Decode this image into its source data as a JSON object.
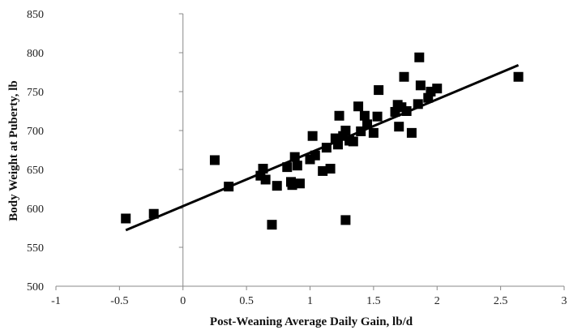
{
  "chart_data": {
    "type": "scatter",
    "title": "",
    "xlabel": "Post-Weaning Average Daily Gain, lb/d",
    "ylabel": "Body Weight at Puberty, lb",
    "xlim": [
      -1,
      3
    ],
    "ylim": [
      500,
      850
    ],
    "xticks": [
      -1,
      -0.5,
      0,
      0.5,
      1,
      1.5,
      2,
      2.5,
      3
    ],
    "xtick_labels": [
      "-1",
      "-0.5",
      "0",
      "0.5",
      "1",
      "1.5",
      "2",
      "2.5",
      "3"
    ],
    "yticks": [
      500,
      550,
      600,
      650,
      700,
      750,
      800,
      850
    ],
    "ytick_labels": [
      "500",
      "550",
      "600",
      "650",
      "700",
      "750",
      "800",
      "850"
    ],
    "grid": false,
    "legend": "none",
    "marker_color": "#000000",
    "points": [
      [
        -0.45,
        587
      ],
      [
        -0.23,
        593
      ],
      [
        0.25,
        662
      ],
      [
        0.36,
        628
      ],
      [
        0.61,
        642
      ],
      [
        0.63,
        651
      ],
      [
        0.65,
        637
      ],
      [
        0.7,
        579
      ],
      [
        0.74,
        629
      ],
      [
        0.82,
        653
      ],
      [
        0.85,
        634
      ],
      [
        0.86,
        630
      ],
      [
        0.88,
        666
      ],
      [
        0.9,
        655
      ],
      [
        0.92,
        632
      ],
      [
        1.0,
        663
      ],
      [
        1.02,
        693
      ],
      [
        1.04,
        668
      ],
      [
        1.1,
        648
      ],
      [
        1.13,
        678
      ],
      [
        1.16,
        651
      ],
      [
        1.2,
        690
      ],
      [
        1.22,
        682
      ],
      [
        1.23,
        719
      ],
      [
        1.26,
        693
      ],
      [
        1.28,
        700
      ],
      [
        1.28,
        585
      ],
      [
        1.31,
        687
      ],
      [
        1.34,
        686
      ],
      [
        1.38,
        731
      ],
      [
        1.4,
        699
      ],
      [
        1.43,
        719
      ],
      [
        1.45,
        708
      ],
      [
        1.5,
        697
      ],
      [
        1.53,
        718
      ],
      [
        1.54,
        752
      ],
      [
        1.67,
        724
      ],
      [
        1.69,
        733
      ],
      [
        1.7,
        705
      ],
      [
        1.72,
        730
      ],
      [
        1.74,
        769
      ],
      [
        1.76,
        725
      ],
      [
        1.8,
        697
      ],
      [
        1.85,
        734
      ],
      [
        1.86,
        794
      ],
      [
        1.87,
        758
      ],
      [
        1.93,
        742
      ],
      [
        1.95,
        750
      ],
      [
        2.0,
        754
      ],
      [
        2.64,
        769
      ]
    ],
    "trendline": {
      "x": [
        -0.45,
        2.64
      ],
      "y": [
        572,
        784
      ]
    }
  }
}
